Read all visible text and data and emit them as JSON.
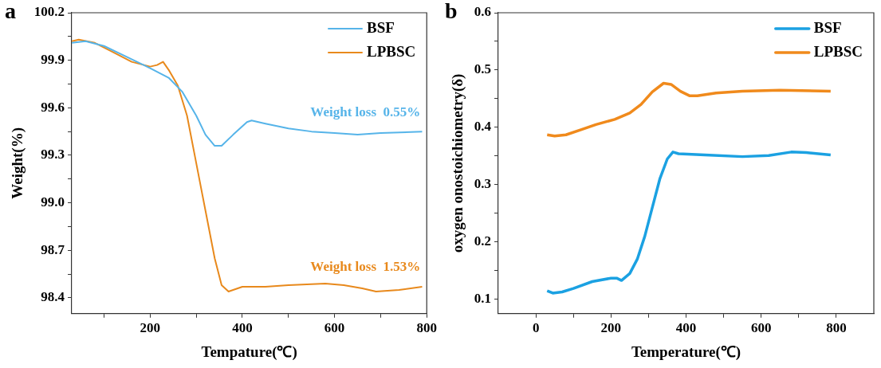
{
  "chart_data": [
    {
      "type": "line",
      "title": "a",
      "xlabel": "Tempature(℃)",
      "ylabel": "Weight(%)",
      "xlim": [
        30,
        800
      ],
      "xticks": [
        {
          "value": 100,
          "label": null
        },
        200,
        {
          "value": 300,
          "label": null
        },
        400,
        {
          "value": 500,
          "label": null
        },
        600,
        {
          "value": 700,
          "label": null
        },
        800
      ],
      "ylim": [
        98.3,
        100.2
      ],
      "yticks": [
        98.4,
        {
          "value": 98.55,
          "label": null
        },
        98.7,
        {
          "value": 98.85,
          "label": null
        },
        {
          "value": 99,
          "label": "99.0"
        },
        {
          "value": 99.15,
          "label": null
        },
        99.3,
        {
          "value": 99.45,
          "label": null
        },
        99.6,
        {
          "value": 99.75,
          "label": null
        },
        99.9,
        {
          "value": 100.05,
          "label": null
        },
        100.2
      ],
      "grid": false,
      "legend": "top right",
      "marker": "none",
      "line_style": "solid",
      "series": [
        {
          "name": "BSF",
          "color": "#56b4e9",
          "x": [
            30,
            60,
            100,
            150,
            200,
            240,
            270,
            300,
            320,
            340,
            355,
            380,
            410,
            420,
            450,
            500,
            550,
            600,
            650,
            700,
            790
          ],
          "values": [
            100.01,
            100.02,
            99.99,
            99.92,
            99.85,
            99.79,
            99.7,
            99.55,
            99.43,
            99.36,
            99.36,
            99.43,
            99.51,
            99.52,
            99.5,
            99.47,
            99.45,
            99.44,
            99.43,
            99.44,
            99.45
          ]
        },
        {
          "name": "LPBSC",
          "color": "#e8891c",
          "x": [
            30,
            45,
            80,
            120,
            160,
            200,
            215,
            228,
            240,
            260,
            280,
            300,
            320,
            340,
            355,
            370,
            400,
            450,
            500,
            580,
            620,
            660,
            690,
            740,
            790
          ],
          "values": [
            100.02,
            100.03,
            100.01,
            99.95,
            99.89,
            99.86,
            99.87,
            99.89,
            99.84,
            99.74,
            99.55,
            99.25,
            98.95,
            98.65,
            98.48,
            98.44,
            98.47,
            98.47,
            98.48,
            98.49,
            98.48,
            98.46,
            98.44,
            98.45,
            98.47
          ]
        }
      ],
      "annotations": [
        "Weight loss  0.55%",
        "Weight loss  1.53%"
      ]
    },
    {
      "type": "line",
      "title": "b",
      "xlabel": "Temperature(℃)",
      "ylabel": "oxygen onostoichiometry(δ)",
      "xlim": [
        -100,
        900
      ],
      "xticks": [
        0,
        {
          "value": 100,
          "label": null
        },
        200,
        {
          "value": 300,
          "label": null
        },
        400,
        {
          "value": 500,
          "label": null
        },
        600,
        {
          "value": 700,
          "label": null
        },
        800
      ],
      "ylim": [
        0.075,
        0.6
      ],
      "yticks": [
        0.1,
        {
          "value": 0.15,
          "label": null
        },
        0.2,
        {
          "value": 0.25,
          "label": null
        },
        0.3,
        {
          "value": 0.35,
          "label": null
        },
        0.4,
        {
          "value": 0.45,
          "label": null
        },
        0.5,
        {
          "value": 0.55,
          "label": null
        },
        0.6
      ],
      "grid": false,
      "legend": "top right",
      "marker": "none",
      "line_style": "solid",
      "series": [
        {
          "name": "BSF",
          "color": "#1ba1e2",
          "x": [
            30,
            45,
            70,
            100,
            150,
            200,
            215,
            228,
            250,
            270,
            290,
            310,
            330,
            350,
            365,
            380,
            450,
            550,
            620,
            680,
            720,
            785
          ],
          "values": [
            0.115,
            0.111,
            0.113,
            0.119,
            0.131,
            0.137,
            0.137,
            0.133,
            0.145,
            0.17,
            0.21,
            0.26,
            0.31,
            0.345,
            0.357,
            0.354,
            0.352,
            0.349,
            0.351,
            0.357,
            0.356,
            0.352
          ]
        },
        {
          "name": "LPBSC",
          "color": "#f08a1c",
          "x": [
            30,
            50,
            80,
            120,
            160,
            210,
            250,
            280,
            310,
            340,
            360,
            385,
            410,
            430,
            480,
            550,
            650,
            785
          ],
          "values": [
            0.387,
            0.385,
            0.387,
            0.396,
            0.405,
            0.414,
            0.425,
            0.44,
            0.462,
            0.477,
            0.475,
            0.463,
            0.455,
            0.455,
            0.46,
            0.463,
            0.465,
            0.463
          ]
        }
      ]
    }
  ]
}
